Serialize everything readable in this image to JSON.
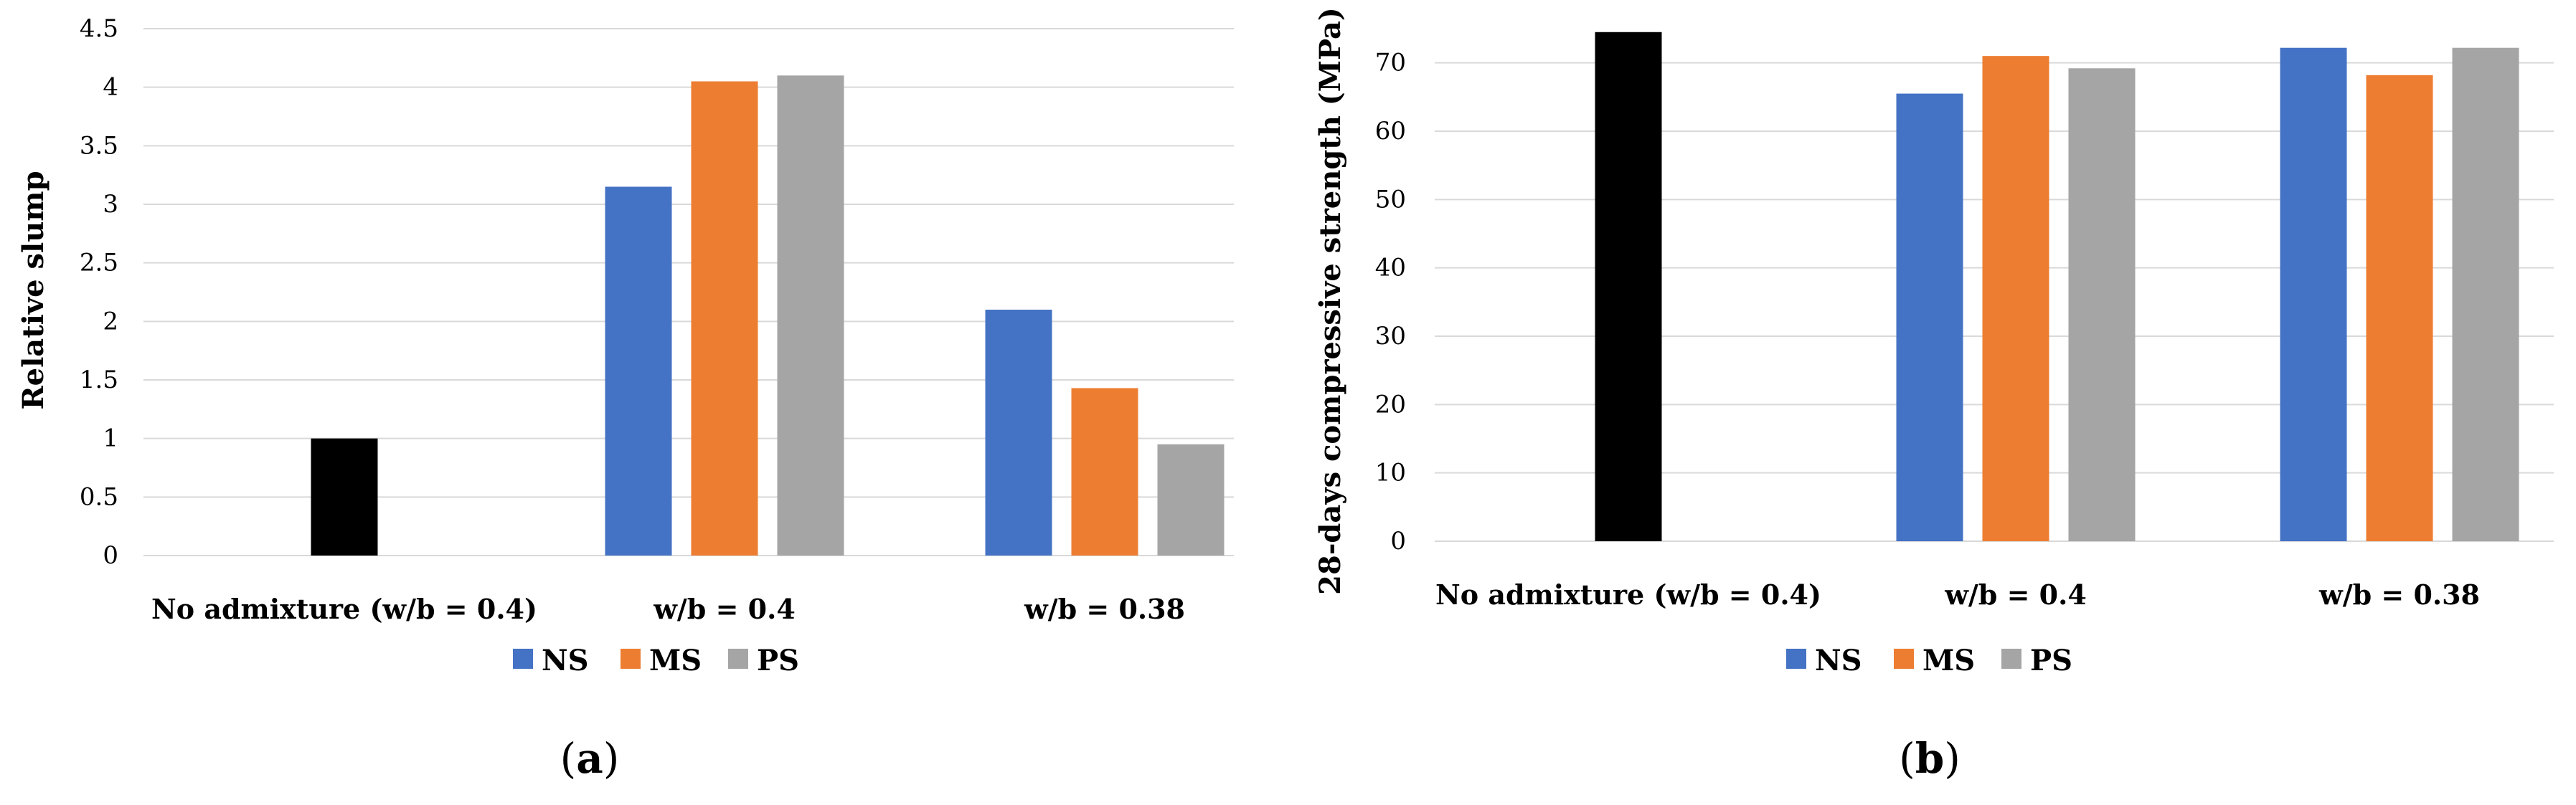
{
  "chart_data": [
    {
      "type": "bar",
      "panel": "a",
      "panel_label": [
        "(",
        "a",
        ")"
      ],
      "ylabel": "Relative slump",
      "ylim": [
        0,
        4.5
      ],
      "yticks": [
        "0",
        "0.5",
        "1",
        "1.5",
        "2",
        "2.5",
        "3",
        "3.5",
        "4",
        "4.5"
      ],
      "grid": true,
      "categories": [
        "No admixture (w/b = 0.4)",
        "w/b = 0.4",
        "w/b = 0.38"
      ],
      "series": [
        {
          "name": "",
          "color": "#000000",
          "values": [
            1.0,
            null,
            null
          ]
        },
        {
          "name": "NS",
          "color": "#4472C4",
          "values": [
            null,
            3.15,
            2.1
          ]
        },
        {
          "name": "MS",
          "color": "#ED7D31",
          "values": [
            null,
            4.05,
            1.43
          ]
        },
        {
          "name": "PS",
          "color": "#A5A5A5",
          "values": [
            null,
            4.1,
            0.95
          ]
        }
      ],
      "legend": [
        "NS",
        "MS",
        "PS"
      ],
      "legend_placement": "bottom"
    },
    {
      "type": "bar",
      "panel": "b",
      "panel_label": [
        "(",
        "b",
        ")"
      ],
      "ylabel": "28-days compressive strength (MPa)",
      "ylim": [
        0,
        75
      ],
      "yticks": [
        "0",
        "10",
        "20",
        "30",
        "40",
        "50",
        "60",
        "70"
      ],
      "grid": true,
      "categories": [
        "No admixture (w/b = 0.4)",
        "w/b = 0.4",
        "w/b = 0.38"
      ],
      "series": [
        {
          "name": "",
          "color": "#000000",
          "values": [
            74.5,
            null,
            null
          ]
        },
        {
          "name": "NS",
          "color": "#4472C4",
          "values": [
            null,
            65.5,
            72.2
          ]
        },
        {
          "name": "MS",
          "color": "#ED7D31",
          "values": [
            null,
            71.0,
            68.2
          ]
        },
        {
          "name": "PS",
          "color": "#A5A5A5",
          "values": [
            null,
            69.2,
            72.2
          ]
        }
      ],
      "legend": [
        "NS",
        "MS",
        "PS"
      ],
      "legend_placement": "bottom"
    }
  ]
}
